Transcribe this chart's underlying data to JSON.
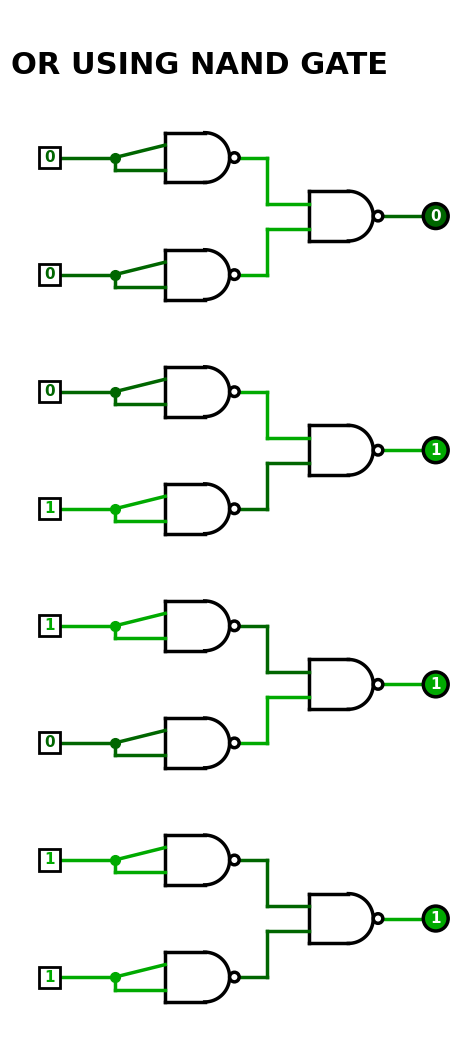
{
  "title": "OR USING NAND GATE",
  "title_fontsize": 22,
  "background_color": "#ffffff",
  "wire_color_active": "#00aa00",
  "wire_color_inactive": "#006600",
  "gate_color": "#000000",
  "rows": [
    {
      "A": 0,
      "B": 0,
      "out": 0
    },
    {
      "A": 0,
      "B": 1,
      "out": 1
    },
    {
      "A": 1,
      "B": 0,
      "out": 1
    },
    {
      "A": 1,
      "B": 1,
      "out": 1
    }
  ]
}
